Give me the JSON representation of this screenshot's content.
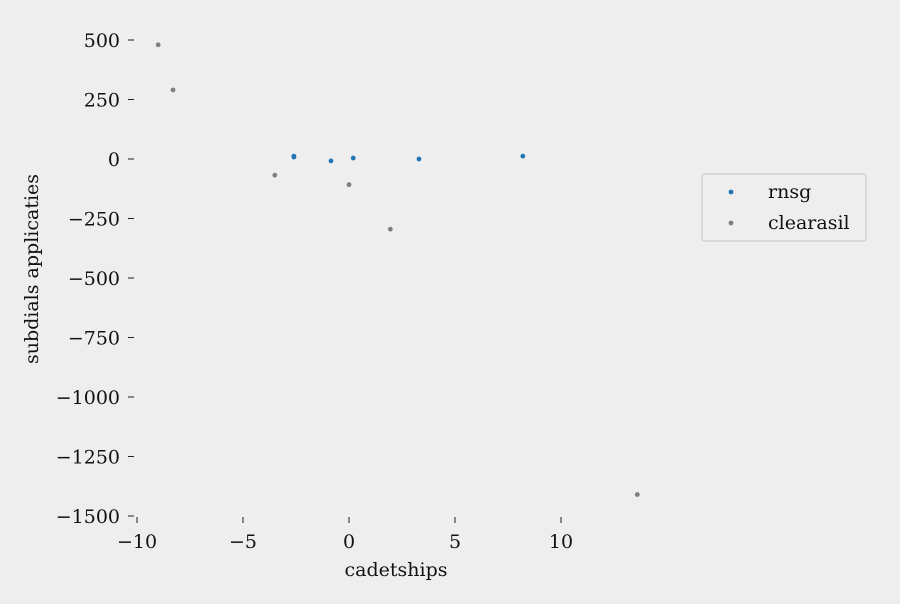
{
  "chart_data": {
    "type": "scatter",
    "title": "",
    "xlabel": "cadetships",
    "ylabel": "subdials applicaties",
    "xlim": [
      -10,
      13.5
    ],
    "ylim": [
      -1500,
      540
    ],
    "xticks": [
      -10,
      -5,
      0,
      5,
      10
    ],
    "xtick_labels": [
      "−10",
      "−5",
      "0",
      "5",
      "10"
    ],
    "yticks": [
      500,
      250,
      0,
      -250,
      -500,
      -750,
      -1000,
      -1250,
      -1500
    ],
    "ytick_labels": [
      "500",
      "250",
      "0",
      "−250",
      "−500",
      "−750",
      "−1000",
      "−1250",
      "−1500"
    ],
    "grid": false,
    "legend_position": "center-right",
    "series": [
      {
        "name": "rnsg",
        "color": "#1f77b4",
        "points": [
          {
            "x": -2.6,
            "y": 12
          },
          {
            "x": -2.6,
            "y": 8
          },
          {
            "x": -0.85,
            "y": -8
          },
          {
            "x": 0.2,
            "y": 4
          },
          {
            "x": 3.3,
            "y": 0
          },
          {
            "x": 8.2,
            "y": 12
          }
        ]
      },
      {
        "name": "clearasil",
        "color": "#7f7f7f",
        "points": [
          {
            "x": -9.0,
            "y": 480
          },
          {
            "x": -8.3,
            "y": 290
          },
          {
            "x": -3.5,
            "y": -68
          },
          {
            "x": 0.0,
            "y": -108
          },
          {
            "x": 1.95,
            "y": -295
          },
          {
            "x": 13.6,
            "y": -1410
          }
        ]
      }
    ]
  }
}
